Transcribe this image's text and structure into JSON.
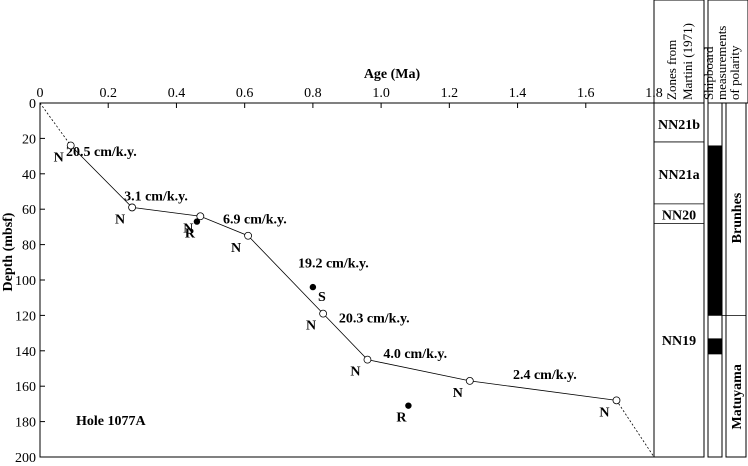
{
  "chart_data": {
    "type": "line",
    "xlabel": "Age (Ma)",
    "ylabel": "Depth (mbsf)",
    "xlim": [
      0,
      1.8
    ],
    "ylim": [
      0,
      200
    ],
    "y_inverted": true,
    "x_axis_position": "top",
    "xticks": [
      "0",
      "0.2",
      "0.4",
      "0.6",
      "0.8",
      "1.0",
      "1.2",
      "1.4",
      "1.6",
      "1.8"
    ],
    "yticks": [
      "0",
      "20",
      "40",
      "60",
      "80",
      "100",
      "120",
      "140",
      "160",
      "180",
      "200"
    ],
    "age_depth_line": {
      "x": [
        0.09,
        0.27,
        0.47,
        0.61,
        0.83,
        0.96,
        1.26,
        1.69
      ],
      "y": [
        24,
        59,
        64,
        75,
        119,
        145,
        157,
        168
      ]
    },
    "extrapolation_lines": [
      {
        "x": [
          0.0,
          0.09
        ],
        "y": [
          0,
          24
        ]
      },
      {
        "x": [
          1.69,
          1.8
        ],
        "y": [
          168,
          200
        ]
      }
    ],
    "open_points": [
      {
        "x": 0.09,
        "y": 24,
        "label": "N"
      },
      {
        "x": 0.27,
        "y": 59,
        "label": "N"
      },
      {
        "x": 0.47,
        "y": 64,
        "label": "N"
      },
      {
        "x": 0.61,
        "y": 75,
        "label": "N"
      },
      {
        "x": 0.83,
        "y": 119,
        "label": "N"
      },
      {
        "x": 0.96,
        "y": 145,
        "label": "N"
      },
      {
        "x": 1.26,
        "y": 157,
        "label": "N"
      },
      {
        "x": 1.69,
        "y": 168,
        "label": "N"
      }
    ],
    "filled_points": [
      {
        "x": 0.46,
        "y": 67,
        "label": "R"
      },
      {
        "x": 0.8,
        "y": 104,
        "label": "S"
      },
      {
        "x": 1.08,
        "y": 171,
        "label": "R"
      }
    ],
    "rate_labels": [
      {
        "text": "20.5 cm/k.y.",
        "x": 0.18,
        "y": 30
      },
      {
        "text": "3.1 cm/k.y.",
        "x": 0.34,
        "y": 55
      },
      {
        "text": "6.9 cm/k.y.",
        "x": 0.63,
        "y": 68
      },
      {
        "text": "19.2 cm/k.y.",
        "x": 0.86,
        "y": 93
      },
      {
        "text": "20.3 cm/k.y.",
        "x": 0.98,
        "y": 124
      },
      {
        "text": "4.0 cm/k.y.",
        "x": 1.1,
        "y": 144
      },
      {
        "text": "2.4 cm/k.y.",
        "x": 1.48,
        "y": 156
      }
    ],
    "annotation": "Hole 1077A",
    "zones": {
      "header": "Zones from Martini (1971)",
      "boundaries": [
        0,
        22,
        57,
        68,
        200
      ],
      "labels": [
        {
          "text": "NN21b",
          "y": 12
        },
        {
          "text": "NN21a",
          "y": 40
        },
        {
          "text": "NN20",
          "y": 63
        },
        {
          "text": "NN19",
          "y": 134
        }
      ]
    },
    "polarity": {
      "header": "Shipboard measurements of polarity",
      "normal_intervals": [
        [
          24,
          120
        ],
        [
          133,
          142
        ]
      ],
      "chron_boundary": 120,
      "labels": [
        {
          "text": "Brunhes",
          "y": 65
        },
        {
          "text": "Matuyama",
          "y": 166
        }
      ]
    }
  }
}
